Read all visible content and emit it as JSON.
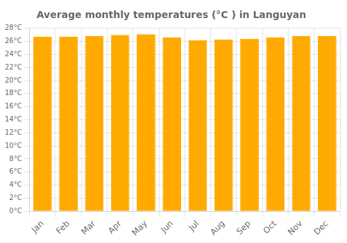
{
  "chart_data": {
    "type": "bar",
    "title": "Average monthly temperatures (°C ) in Languyan",
    "categories": [
      "Jan",
      "Feb",
      "Mar",
      "Apr",
      "May",
      "Jun",
      "Jul",
      "Aug",
      "Sep",
      "Oct",
      "Nov",
      "Dec"
    ],
    "values": [
      26.7,
      26.7,
      26.8,
      27.0,
      27.1,
      26.6,
      26.2,
      26.3,
      26.4,
      26.6,
      26.8,
      26.8
    ],
    "color": "#FFAA00",
    "ylim": [
      0,
      28
    ],
    "yticks": [
      {
        "value": 0,
        "label": "0°C"
      },
      {
        "value": 2,
        "label": "2°C"
      },
      {
        "value": 4,
        "label": "4°C"
      },
      {
        "value": 6,
        "label": "6°C"
      },
      {
        "value": 8,
        "label": "8°C"
      },
      {
        "value": 10,
        "label": "10°C"
      },
      {
        "value": 12,
        "label": "12°C"
      },
      {
        "value": 14,
        "label": "14°C"
      },
      {
        "value": 16,
        "label": "16°C"
      },
      {
        "value": 18,
        "label": "18°C"
      },
      {
        "value": 20,
        "label": "20°C"
      },
      {
        "value": 22,
        "label": "22°C"
      },
      {
        "value": 24,
        "label": "24°C"
      },
      {
        "value": 26,
        "label": "26°C"
      },
      {
        "value": 28,
        "label": "28°C"
      }
    ],
    "grid": true
  }
}
